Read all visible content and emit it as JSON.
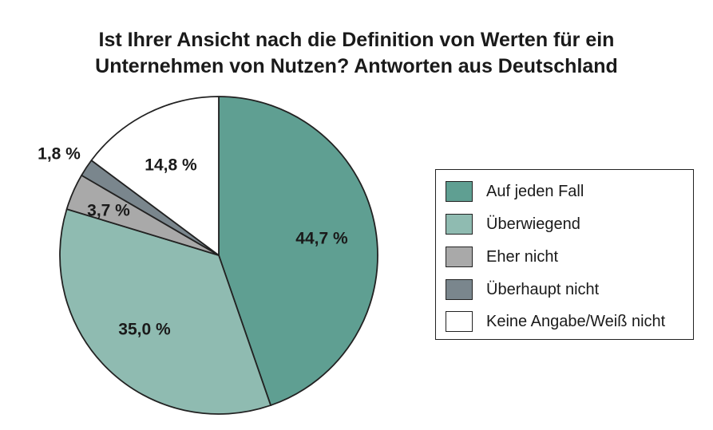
{
  "chart_data": {
    "type": "pie",
    "title_lines": [
      "Ist Ihrer Ansicht nach die Definition von Werten für ein",
      "Unternehmen von Nutzen? Antworten aus Deutschland"
    ],
    "unit": "%",
    "start_angle": "12 o'clock",
    "direction": "clockwise",
    "legend_placement": "right",
    "slices": [
      {
        "label": "Auf jeden Fall",
        "value": 44.7,
        "display": "44,7 %",
        "color": "#5f9f92"
      },
      {
        "label": "Überwiegend",
        "value": 35.0,
        "display": "35,0 %",
        "color": "#8fbbb1"
      },
      {
        "label": "Eher nicht",
        "value": 3.7,
        "display": "3,7 %",
        "color": "#a9a9a9"
      },
      {
        "label": "Überhaupt nicht",
        "value": 1.8,
        "display": "1,8 %",
        "color": "#7a868d"
      },
      {
        "label": "Keine Angabe/Weiß nicht",
        "value": 14.8,
        "display": "14,8 %",
        "color": "#ffffff"
      }
    ]
  }
}
